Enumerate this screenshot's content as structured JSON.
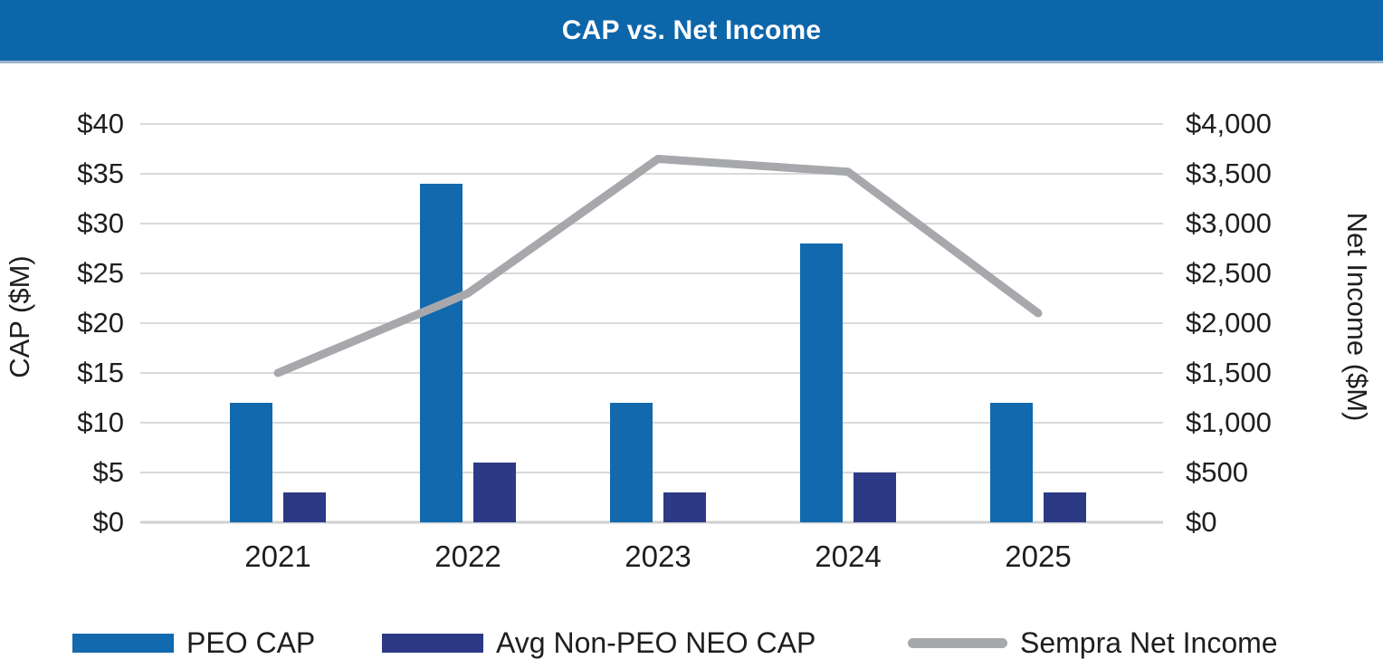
{
  "header": {
    "title": "CAP vs. Net Income"
  },
  "colors": {
    "header_bg": "#0e66aa",
    "header_text": "#ffffff",
    "peo_bar": "#1269ad",
    "neo_bar": "#2c3a85",
    "net_income_line": "#a7a8ac",
    "gridline": "#d9d9d9",
    "baseline": "#cfd0d2",
    "axis_text": "#1e1e1e"
  },
  "chart_data": {
    "type": "bar",
    "combo": "bars with overlaid line on secondary axis",
    "title": "CAP vs. Net Income",
    "categories": [
      "2021",
      "2022",
      "2023",
      "2024",
      "2025"
    ],
    "series": [
      {
        "name": "PEO CAP",
        "kind": "bar",
        "axis": "left",
        "color": "#1269ad",
        "values": [
          12,
          34,
          12,
          28,
          12
        ]
      },
      {
        "name": "Avg Non-PEO NEO CAP",
        "kind": "bar",
        "axis": "left",
        "color": "#2c3a85",
        "values": [
          3,
          6,
          3,
          5,
          3
        ]
      },
      {
        "name": "Sempra Net Income",
        "kind": "line",
        "axis": "right",
        "color": "#a7a8ac",
        "values": [
          1500,
          2300,
          3650,
          3520,
          2100
        ]
      }
    ],
    "left_axis": {
      "label": "CAP ($M)",
      "min": 0,
      "max": 40,
      "step": 5,
      "tick_labels": [
        "$0",
        "$5",
        "$10",
        "$15",
        "$20",
        "$25",
        "$30",
        "$35",
        "$40"
      ]
    },
    "right_axis": {
      "label": "Net Income ($M)",
      "min": 0,
      "max": 4000,
      "step": 500,
      "tick_labels": [
        "$0",
        "$500",
        "$1,000",
        "$1,500",
        "$2,000",
        "$2,500",
        "$3,000",
        "$3,500",
        "$4,000"
      ]
    },
    "x_axis": {
      "tick_labels": [
        "2021",
        "2022",
        "2023",
        "2024",
        "2025"
      ]
    },
    "grid": true,
    "legend_position": "bottom"
  },
  "legend": {
    "items": [
      {
        "label": "PEO CAP"
      },
      {
        "label": "Avg Non-PEO NEO CAP"
      },
      {
        "label": "Sempra Net Income"
      }
    ]
  }
}
